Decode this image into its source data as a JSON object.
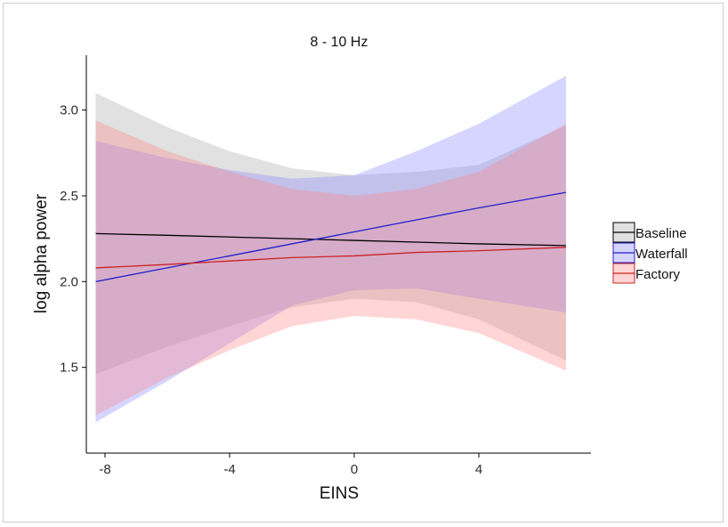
{
  "chart_data": {
    "type": "line",
    "title": "8 - 10 Hz",
    "xlabel": "EINS",
    "ylabel": "log alpha power",
    "xlim": [
      -8.6,
      7.6
    ],
    "ylim": [
      1.0,
      3.32
    ],
    "xticks": [
      -8,
      -4,
      0,
      4
    ],
    "yticks": [
      1.5,
      2.0,
      2.5,
      3.0
    ],
    "xtick_labels": [
      "-8",
      "-4",
      "0",
      "4"
    ],
    "ytick_labels": [
      "1.5",
      "2.0",
      "2.5",
      "3.0"
    ],
    "grid": false,
    "legend_position": "right",
    "series": [
      {
        "name": "Baseline",
        "line_color": "#000000",
        "fill_color": "#aaaaaa",
        "x": [
          -8.3,
          -6,
          -4,
          -2,
          0,
          2,
          4,
          6.8
        ],
        "y": [
          2.28,
          2.27,
          2.26,
          2.25,
          2.24,
          2.23,
          2.22,
          2.21
        ],
        "lower": [
          1.46,
          1.62,
          1.74,
          1.85,
          1.9,
          1.88,
          1.78,
          1.54
        ],
        "upper": [
          3.1,
          2.9,
          2.76,
          2.66,
          2.62,
          2.64,
          2.68,
          2.91
        ]
      },
      {
        "name": "Waterfall",
        "line_color": "#2222cc",
        "fill_color": "#8888ff",
        "x": [
          -8.3,
          -6,
          -4,
          -2,
          0,
          2,
          4,
          6.8
        ],
        "y": [
          2.0,
          2.08,
          2.15,
          2.22,
          2.29,
          2.36,
          2.43,
          2.52
        ],
        "lower": [
          1.18,
          1.42,
          1.64,
          1.86,
          1.95,
          1.96,
          1.9,
          1.82
        ],
        "upper": [
          2.82,
          2.72,
          2.65,
          2.6,
          2.62,
          2.76,
          2.92,
          3.2
        ]
      },
      {
        "name": "Factory",
        "line_color": "#cc2222",
        "fill_color": "#ff8888",
        "x": [
          -8.3,
          -6,
          -4,
          -2,
          0,
          2,
          4,
          6.8
        ],
        "y": [
          2.08,
          2.1,
          2.12,
          2.14,
          2.15,
          2.17,
          2.18,
          2.2
        ],
        "lower": [
          1.22,
          1.44,
          1.6,
          1.74,
          1.8,
          1.78,
          1.7,
          1.48
        ],
        "upper": [
          2.94,
          2.76,
          2.64,
          2.54,
          2.5,
          2.54,
          2.64,
          2.92
        ]
      }
    ]
  }
}
